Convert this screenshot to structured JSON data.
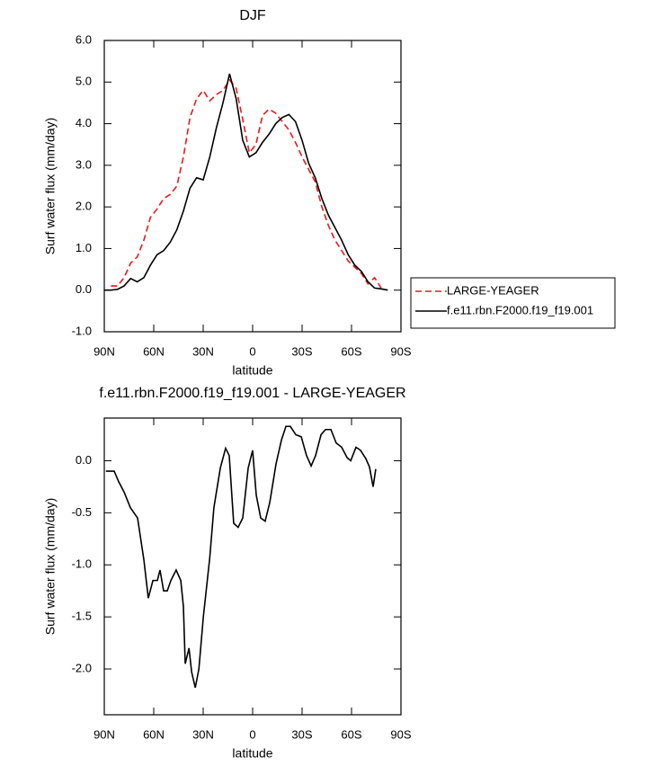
{
  "chart_data": [
    {
      "type": "line",
      "title": "DJF",
      "xlabel": "latitude",
      "ylabel": "Surf water flux (mm/day)",
      "x": [
        90,
        86,
        82,
        78,
        74,
        70,
        66,
        62,
        58,
        54,
        50,
        46,
        42,
        38,
        34,
        30,
        26,
        22,
        18,
        14,
        10,
        6,
        2,
        -2,
        -6,
        -10,
        -14,
        -18,
        -22,
        -26,
        -30,
        -34,
        -38,
        -42,
        -46,
        -50,
        -54,
        -58,
        -62,
        -66,
        -70,
        -74,
        -78,
        -82
      ],
      "series": [
        {
          "name": "LARGE-YEAGER",
          "color": "#e8191c",
          "line_style": "dashed",
          "values": [
            null,
            0.1,
            0.1,
            0.3,
            0.65,
            0.8,
            1.2,
            1.75,
            1.95,
            2.2,
            2.3,
            2.5,
            3.2,
            4.15,
            4.6,
            4.8,
            4.55,
            4.7,
            4.8,
            5.05,
            4.85,
            4.1,
            3.3,
            3.5,
            4.2,
            4.35,
            4.25,
            4.05,
            3.85,
            3.55,
            3.2,
            2.9,
            2.6,
            2.0,
            1.55,
            1.2,
            0.95,
            0.7,
            0.55,
            0.4,
            0.15,
            0.3,
            0.05,
            null
          ]
        },
        {
          "name": "f.e11.rbn.F2000.f19_f19.001",
          "color": "#000000",
          "line_style": "solid",
          "values": [
            0,
            0,
            0.02,
            0.1,
            0.28,
            0.2,
            0.3,
            0.6,
            0.85,
            0.95,
            1.15,
            1.45,
            1.9,
            2.45,
            2.7,
            2.65,
            3.2,
            3.9,
            4.5,
            5.2,
            4.6,
            3.6,
            3.2,
            3.3,
            3.55,
            3.75,
            4.0,
            4.15,
            4.22,
            4.05,
            3.6,
            3.05,
            2.7,
            2.2,
            1.8,
            1.5,
            1.2,
            0.85,
            0.6,
            0.45,
            0.2,
            0.05,
            0.03,
            0
          ]
        }
      ],
      "xlim": [
        90,
        -90
      ],
      "xticks": [
        {
          "value": 90,
          "label": "90N"
        },
        {
          "value": 60,
          "label": "60N"
        },
        {
          "value": 30,
          "label": "30N"
        },
        0,
        {
          "value": -30,
          "label": "30S"
        },
        {
          "value": -60,
          "label": "60S"
        },
        {
          "value": -90,
          "label": "90S"
        }
      ],
      "ylim": [
        -1,
        6
      ],
      "yticks": [
        {
          "value": -1,
          "label": "-1.0"
        },
        {
          "value": 0,
          "label": "0.0"
        },
        {
          "value": 1,
          "label": "1.0"
        },
        {
          "value": 2,
          "label": "2.0"
        },
        {
          "value": 3,
          "label": "3.0"
        },
        {
          "value": 4,
          "label": "4.0"
        },
        {
          "value": 5,
          "label": "5.0"
        },
        {
          "value": 6,
          "label": "6.0"
        }
      ],
      "legend": "outside right"
    },
    {
      "type": "line",
      "title": "f.e11.rbn.F2000.f19_f19.001 - LARGE-YEAGER",
      "xlabel": "latitude",
      "ylabel": "Surf water flux (mm/day)",
      "x": [
        89,
        84,
        81.3,
        78,
        74.2,
        69.8,
        66,
        63.3,
        60.5,
        57.8,
        56.2,
        54,
        51.8,
        49.6,
        46.4,
        43.6,
        42,
        40.9,
        38.6,
        37,
        34.8,
        32.6,
        29.9,
        26,
        23.5,
        19.6,
        16.4,
        14.2,
        11.5,
        8.8,
        6,
        2.7,
        0,
        -2.2,
        -4.9,
        -7.6,
        -10.4,
        -14.2,
        -17.5,
        -20.2,
        -22.9,
        -26.2,
        -29.5,
        -32.7,
        -35.5,
        -38.2,
        -41.5,
        -44.2,
        -47.5,
        -50.7,
        -54,
        -57.3,
        -59.5,
        -62.7,
        -65.5,
        -68.7,
        -70.9,
        -73.1,
        -74.7
      ],
      "values": [
        -0.1,
        -0.1,
        -0.2,
        -0.3,
        -0.45,
        -0.55,
        -0.95,
        -1.32,
        -1.15,
        -1.15,
        -1.05,
        -1.25,
        -1.25,
        -1.15,
        -1.05,
        -1.15,
        -1.4,
        -1.95,
        -1.8,
        -2.03,
        -2.18,
        -2.0,
        -1.5,
        -0.93,
        -0.45,
        -0.07,
        0.12,
        0.05,
        -0.6,
        -0.64,
        -0.55,
        -0.07,
        0.1,
        -0.33,
        -0.55,
        -0.58,
        -0.4,
        -0.03,
        0.2,
        0.33,
        0.33,
        0.25,
        0.23,
        0.05,
        -0.05,
        0.05,
        0.25,
        0.3,
        0.3,
        0.17,
        0.13,
        0.03,
        0.0,
        0.13,
        0.1,
        0.02,
        -0.06,
        -0.25,
        -0.08
      ],
      "color": "#000000",
      "xlim": [
        90,
        -90
      ],
      "xticks": [
        {
          "value": 90,
          "label": "90N"
        },
        {
          "value": 60,
          "label": "60N"
        },
        {
          "value": 30,
          "label": "30N"
        },
        0,
        {
          "value": -30,
          "label": "30S"
        },
        {
          "value": -60,
          "label": "60S"
        },
        {
          "value": -90,
          "label": "90S"
        }
      ],
      "ylim": [
        -2.44,
        0.41
      ],
      "yticks": [
        {
          "value": -2,
          "label": "-2.0"
        },
        -1.5,
        {
          "value": -1,
          "label": "-1.0"
        },
        -0.5,
        {
          "value": 0,
          "label": "0.0"
        }
      ]
    }
  ]
}
